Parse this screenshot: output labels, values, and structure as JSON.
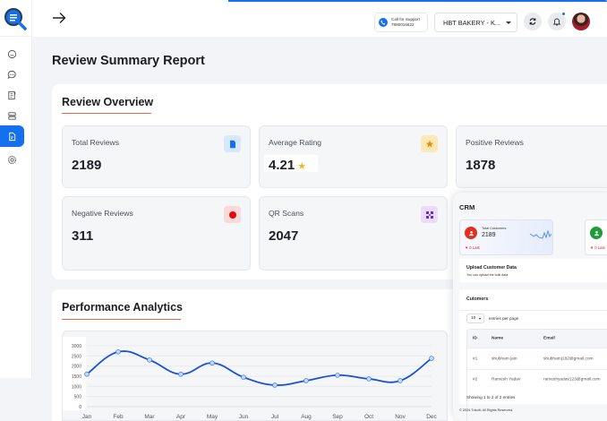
{
  "sidebar": {
    "items": [
      {
        "name": "dashboard",
        "icon": "face-icon",
        "active": false
      },
      {
        "name": "messages",
        "icon": "chat-icon",
        "active": false
      },
      {
        "name": "reviews-form",
        "icon": "form-icon",
        "active": false
      },
      {
        "name": "storage",
        "icon": "server-icon",
        "active": false
      },
      {
        "name": "reports",
        "icon": "document-icon",
        "active": true
      },
      {
        "name": "settings",
        "icon": "gear-icon",
        "active": false
      }
    ]
  },
  "header": {
    "support_label": "Call for Support",
    "support_phone": "7880016622",
    "business_select": "HBT BAKERY - K...",
    "accent": "#1570ef"
  },
  "page": {
    "title": "Review Summary Report"
  },
  "overview": {
    "title": "Review Overview",
    "cards": [
      {
        "label": "Total Reviews",
        "value": "2189",
        "icon": "document-icon",
        "icon_color": "#1570ef",
        "icon_bg": "#d6e8fb"
      },
      {
        "label": "Average Rating",
        "value": "4.21",
        "icon": "star-icon",
        "icon_color": "#f08c00",
        "icon_bg": "#fde9b8",
        "suffix": "★"
      },
      {
        "label": "Positive Reviews",
        "value": "1878",
        "icon": "thumbs-up-icon"
      },
      {
        "label": "Negative Reviews",
        "value": "311",
        "icon": "dot-icon",
        "icon_color": "#d80e0e",
        "icon_bg": "#fbd9d9"
      },
      {
        "label": "QR Scans",
        "value": "2047",
        "icon": "qr-icon",
        "icon_color": "#6b2bd9",
        "icon_bg": "#eadcfc"
      }
    ]
  },
  "analytics": {
    "title": "Performance Analytics"
  },
  "chart_data": {
    "type": "line",
    "title": "",
    "xlabel": "",
    "ylabel": "",
    "categories": [
      "Jan",
      "Feb",
      "Mar",
      "Apr",
      "May",
      "Jun",
      "Jul",
      "Aug",
      "Sep",
      "Oct",
      "Nov",
      "Dec"
    ],
    "series": [
      {
        "name": "Reviews",
        "color": "#1a4fd9",
        "values": [
          1600,
          2700,
          2300,
          1600,
          2150,
          1450,
          1060,
          1280,
          1550,
          1370,
          1280,
          2380
        ]
      }
    ],
    "yticks": [
      "3000",
      "2500",
      "2000",
      "1500",
      "1000",
      "500",
      "0"
    ],
    "ylim": [
      0,
      3000
    ],
    "grid": true,
    "smooth": true,
    "legend": "none"
  },
  "crm": {
    "title": "CRM",
    "cards": [
      {
        "label": "Total Customers",
        "value": "2189",
        "trend": "▼ 0 Last",
        "avatar_color": "#e0301e"
      },
      {
        "label": "",
        "value": "",
        "trend": "▼ 0 Last",
        "avatar_color": "#1f9d3a"
      }
    ],
    "upload": {
      "title": "Upload Customer Data",
      "subtitle": "You can upload the bulk data"
    },
    "customers": {
      "title": "Cutomers",
      "page_size": "10",
      "entries_label": "entries per page",
      "columns": [
        "ID",
        "Name",
        "Email"
      ],
      "rows": [
        {
          "id": "#1",
          "name": "shubham jain",
          "email": "shubhamj182@gmail.com"
        },
        {
          "id": "#2",
          "name": "Ramesh Yadav",
          "email": "rameshyadav123@gmail.com"
        }
      ],
      "showing": "Showing 1 to 2 of 2 entries"
    },
    "footer": "© 2024 Trisoft. All Rights Reserved."
  }
}
